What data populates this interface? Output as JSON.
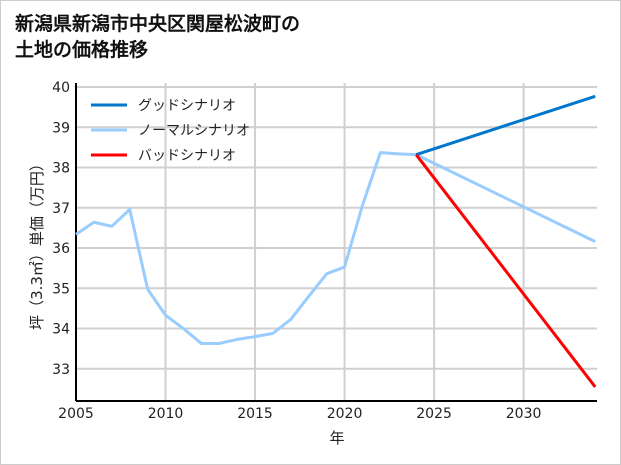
{
  "chart_data": {
    "type": "line",
    "title_lines": [
      "新潟県新潟市中央区関屋松波町の",
      "土地の価格推移"
    ],
    "xlabel": "年",
    "ylabel": "坪（3.3㎡）単価（万円）",
    "xlim": [
      2005,
      2034.1
    ],
    "ylim": [
      32.2,
      40.1
    ],
    "xticks": [
      2005,
      2010,
      2015,
      2020,
      2025,
      2030
    ],
    "yticks": [
      33,
      34,
      35,
      36,
      37,
      38,
      39,
      40
    ],
    "grid": true,
    "legend_position": "top-left",
    "series": [
      {
        "name": "グッドシナリオ",
        "color": "#0077cc",
        "x": [
          2024,
          2034
        ],
        "values": [
          38.32,
          39.77
        ]
      },
      {
        "name": "ノーマルシナリオ",
        "color": "#99ccff",
        "x": [
          2005,
          2006,
          2007,
          2008,
          2009,
          2010,
          2011,
          2012,
          2013,
          2014,
          2015,
          2016,
          2017,
          2018,
          2019,
          2020,
          2021,
          2022,
          2023,
          2024,
          2034
        ],
        "values": [
          36.34,
          36.64,
          36.54,
          36.96,
          34.98,
          34.33,
          34.0,
          33.63,
          33.63,
          33.73,
          33.8,
          33.88,
          34.23,
          34.8,
          35.36,
          35.53,
          37.06,
          38.37,
          38.34,
          38.32,
          36.16
        ]
      },
      {
        "name": "バッドシナリオ",
        "color": "#ff0000",
        "x": [
          2024,
          2034
        ],
        "values": [
          38.32,
          32.55
        ]
      }
    ]
  }
}
